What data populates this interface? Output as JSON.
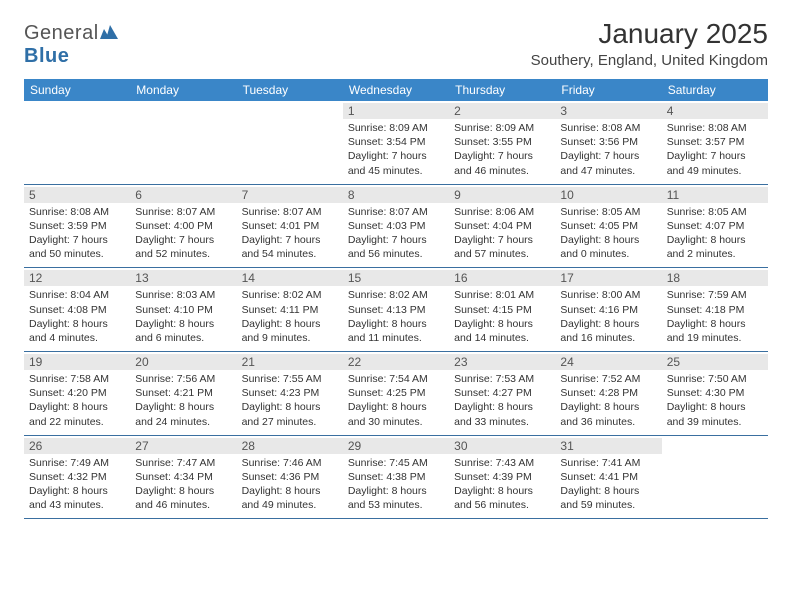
{
  "brand": {
    "name_part1": "General",
    "name_part2": "Blue"
  },
  "title": "January 2025",
  "location": "Southery, England, United Kingdom",
  "colors": {
    "header_bg": "#3a86c8",
    "header_text": "#ffffff",
    "daynum_bg": "#e8e8e8",
    "row_border": "#3a6fa0",
    "body_text": "#333333",
    "brand_gray": "#555555",
    "brand_blue": "#2f6fa7"
  },
  "daysOfWeek": [
    "Sunday",
    "Monday",
    "Tuesday",
    "Wednesday",
    "Thursday",
    "Friday",
    "Saturday"
  ],
  "weeks": [
    [
      {
        "n": "",
        "sunrise": "",
        "sunset": "",
        "daylight": ""
      },
      {
        "n": "",
        "sunrise": "",
        "sunset": "",
        "daylight": ""
      },
      {
        "n": "",
        "sunrise": "",
        "sunset": "",
        "daylight": ""
      },
      {
        "n": "1",
        "sunrise": "Sunrise: 8:09 AM",
        "sunset": "Sunset: 3:54 PM",
        "daylight": "Daylight: 7 hours and 45 minutes."
      },
      {
        "n": "2",
        "sunrise": "Sunrise: 8:09 AM",
        "sunset": "Sunset: 3:55 PM",
        "daylight": "Daylight: 7 hours and 46 minutes."
      },
      {
        "n": "3",
        "sunrise": "Sunrise: 8:08 AM",
        "sunset": "Sunset: 3:56 PM",
        "daylight": "Daylight: 7 hours and 47 minutes."
      },
      {
        "n": "4",
        "sunrise": "Sunrise: 8:08 AM",
        "sunset": "Sunset: 3:57 PM",
        "daylight": "Daylight: 7 hours and 49 minutes."
      }
    ],
    [
      {
        "n": "5",
        "sunrise": "Sunrise: 8:08 AM",
        "sunset": "Sunset: 3:59 PM",
        "daylight": "Daylight: 7 hours and 50 minutes."
      },
      {
        "n": "6",
        "sunrise": "Sunrise: 8:07 AM",
        "sunset": "Sunset: 4:00 PM",
        "daylight": "Daylight: 7 hours and 52 minutes."
      },
      {
        "n": "7",
        "sunrise": "Sunrise: 8:07 AM",
        "sunset": "Sunset: 4:01 PM",
        "daylight": "Daylight: 7 hours and 54 minutes."
      },
      {
        "n": "8",
        "sunrise": "Sunrise: 8:07 AM",
        "sunset": "Sunset: 4:03 PM",
        "daylight": "Daylight: 7 hours and 56 minutes."
      },
      {
        "n": "9",
        "sunrise": "Sunrise: 8:06 AM",
        "sunset": "Sunset: 4:04 PM",
        "daylight": "Daylight: 7 hours and 57 minutes."
      },
      {
        "n": "10",
        "sunrise": "Sunrise: 8:05 AM",
        "sunset": "Sunset: 4:05 PM",
        "daylight": "Daylight: 8 hours and 0 minutes."
      },
      {
        "n": "11",
        "sunrise": "Sunrise: 8:05 AM",
        "sunset": "Sunset: 4:07 PM",
        "daylight": "Daylight: 8 hours and 2 minutes."
      }
    ],
    [
      {
        "n": "12",
        "sunrise": "Sunrise: 8:04 AM",
        "sunset": "Sunset: 4:08 PM",
        "daylight": "Daylight: 8 hours and 4 minutes."
      },
      {
        "n": "13",
        "sunrise": "Sunrise: 8:03 AM",
        "sunset": "Sunset: 4:10 PM",
        "daylight": "Daylight: 8 hours and 6 minutes."
      },
      {
        "n": "14",
        "sunrise": "Sunrise: 8:02 AM",
        "sunset": "Sunset: 4:11 PM",
        "daylight": "Daylight: 8 hours and 9 minutes."
      },
      {
        "n": "15",
        "sunrise": "Sunrise: 8:02 AM",
        "sunset": "Sunset: 4:13 PM",
        "daylight": "Daylight: 8 hours and 11 minutes."
      },
      {
        "n": "16",
        "sunrise": "Sunrise: 8:01 AM",
        "sunset": "Sunset: 4:15 PM",
        "daylight": "Daylight: 8 hours and 14 minutes."
      },
      {
        "n": "17",
        "sunrise": "Sunrise: 8:00 AM",
        "sunset": "Sunset: 4:16 PM",
        "daylight": "Daylight: 8 hours and 16 minutes."
      },
      {
        "n": "18",
        "sunrise": "Sunrise: 7:59 AM",
        "sunset": "Sunset: 4:18 PM",
        "daylight": "Daylight: 8 hours and 19 minutes."
      }
    ],
    [
      {
        "n": "19",
        "sunrise": "Sunrise: 7:58 AM",
        "sunset": "Sunset: 4:20 PM",
        "daylight": "Daylight: 8 hours and 22 minutes."
      },
      {
        "n": "20",
        "sunrise": "Sunrise: 7:56 AM",
        "sunset": "Sunset: 4:21 PM",
        "daylight": "Daylight: 8 hours and 24 minutes."
      },
      {
        "n": "21",
        "sunrise": "Sunrise: 7:55 AM",
        "sunset": "Sunset: 4:23 PM",
        "daylight": "Daylight: 8 hours and 27 minutes."
      },
      {
        "n": "22",
        "sunrise": "Sunrise: 7:54 AM",
        "sunset": "Sunset: 4:25 PM",
        "daylight": "Daylight: 8 hours and 30 minutes."
      },
      {
        "n": "23",
        "sunrise": "Sunrise: 7:53 AM",
        "sunset": "Sunset: 4:27 PM",
        "daylight": "Daylight: 8 hours and 33 minutes."
      },
      {
        "n": "24",
        "sunrise": "Sunrise: 7:52 AM",
        "sunset": "Sunset: 4:28 PM",
        "daylight": "Daylight: 8 hours and 36 minutes."
      },
      {
        "n": "25",
        "sunrise": "Sunrise: 7:50 AM",
        "sunset": "Sunset: 4:30 PM",
        "daylight": "Daylight: 8 hours and 39 minutes."
      }
    ],
    [
      {
        "n": "26",
        "sunrise": "Sunrise: 7:49 AM",
        "sunset": "Sunset: 4:32 PM",
        "daylight": "Daylight: 8 hours and 43 minutes."
      },
      {
        "n": "27",
        "sunrise": "Sunrise: 7:47 AM",
        "sunset": "Sunset: 4:34 PM",
        "daylight": "Daylight: 8 hours and 46 minutes."
      },
      {
        "n": "28",
        "sunrise": "Sunrise: 7:46 AM",
        "sunset": "Sunset: 4:36 PM",
        "daylight": "Daylight: 8 hours and 49 minutes."
      },
      {
        "n": "29",
        "sunrise": "Sunrise: 7:45 AM",
        "sunset": "Sunset: 4:38 PM",
        "daylight": "Daylight: 8 hours and 53 minutes."
      },
      {
        "n": "30",
        "sunrise": "Sunrise: 7:43 AM",
        "sunset": "Sunset: 4:39 PM",
        "daylight": "Daylight: 8 hours and 56 minutes."
      },
      {
        "n": "31",
        "sunrise": "Sunrise: 7:41 AM",
        "sunset": "Sunset: 4:41 PM",
        "daylight": "Daylight: 8 hours and 59 minutes."
      },
      {
        "n": "",
        "sunrise": "",
        "sunset": "",
        "daylight": ""
      }
    ]
  ]
}
